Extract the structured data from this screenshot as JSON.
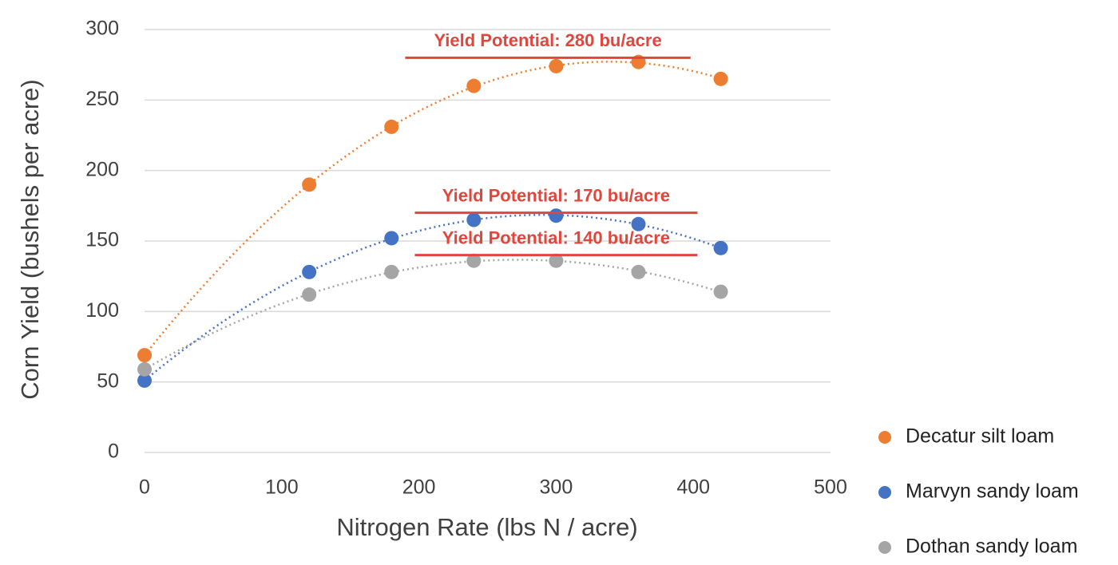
{
  "chart_data": {
    "type": "scatter",
    "x_label": "Nitrogen Rate (lbs N / acre)",
    "y_label": "Corn Yield (bushels per acre)",
    "x": [
      0,
      120,
      180,
      240,
      300,
      360,
      420
    ],
    "series": [
      {
        "name": "Decatur silt loam",
        "color": "#ed7d31",
        "values": [
          69,
          190,
          231,
          260,
          274,
          277,
          265
        ]
      },
      {
        "name": "Marvyn sandy loam",
        "color": "#4472c4",
        "values": [
          51,
          128,
          152,
          165,
          168,
          162,
          145
        ]
      },
      {
        "name": "Dothan sandy loam",
        "color": "#a5a5a5",
        "values": [
          59,
          112,
          128,
          136,
          136,
          128,
          114
        ]
      }
    ],
    "trendline": "polynomial",
    "xlim": [
      0,
      500
    ],
    "xticks": [
      0,
      100,
      200,
      300,
      400,
      500
    ],
    "ylim": [
      0,
      300
    ],
    "yticks": [
      0,
      50,
      100,
      150,
      200,
      250,
      300
    ],
    "grid": true,
    "legend": "right",
    "annotations": [
      {
        "text": "Yield Potential: 280 bu/acre",
        "value": 280,
        "xrange": [
          190,
          398
        ],
        "color": "#e0463c"
      },
      {
        "text": "Yield Potential: 170 bu/acre",
        "value": 170,
        "xrange": [
          197,
          403
        ],
        "color": "#e0463c"
      },
      {
        "text": "Yield Potential: 140 bu/acre",
        "value": 140,
        "xrange": [
          197,
          403
        ],
        "color": "#e0463c"
      }
    ]
  }
}
